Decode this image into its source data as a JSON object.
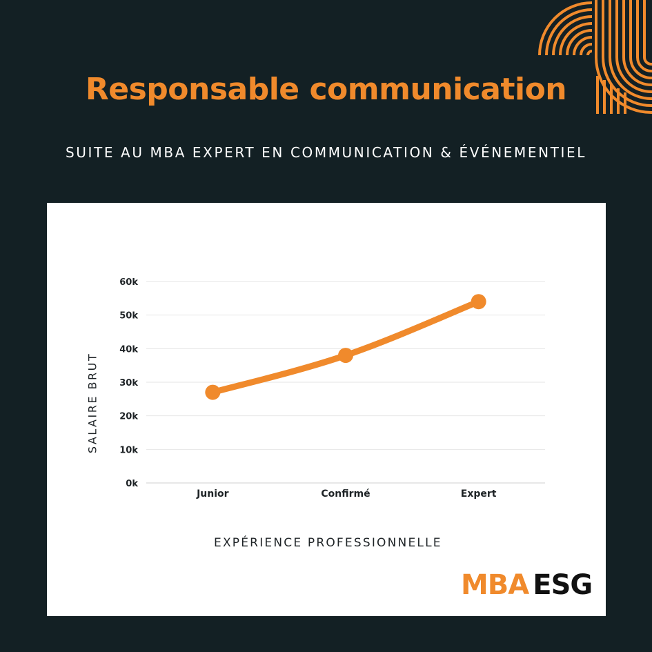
{
  "page": {
    "title": "Responsable communication",
    "subtitle": "SUITE AU MBA EXPERT EN COMMUNICATION & ÉVÉNEMENTIEL"
  },
  "colors": {
    "background": "#132024",
    "accent": "#f08a2c",
    "card": "#ffffff",
    "gridline": "#e6e6e6",
    "text_dark": "#1e2326"
  },
  "logo": {
    "part1": "MBA",
    "part2": "ESG"
  },
  "chart_data": {
    "type": "line",
    "title": "",
    "xlabel": "EXPÉRIENCE PROFESSIONNELLE",
    "ylabel": "SALAIRE BRUT",
    "categories": [
      "Junior",
      "Confirmé",
      "Expert"
    ],
    "values": [
      27000,
      38000,
      54000
    ],
    "ylim": [
      0,
      60000
    ],
    "yticks": [
      0,
      10000,
      20000,
      30000,
      40000,
      50000,
      60000
    ],
    "ytick_labels": [
      "0k",
      "10k",
      "20k",
      "30k",
      "40k",
      "50k",
      "60k"
    ],
    "grid": true,
    "legend": false
  }
}
